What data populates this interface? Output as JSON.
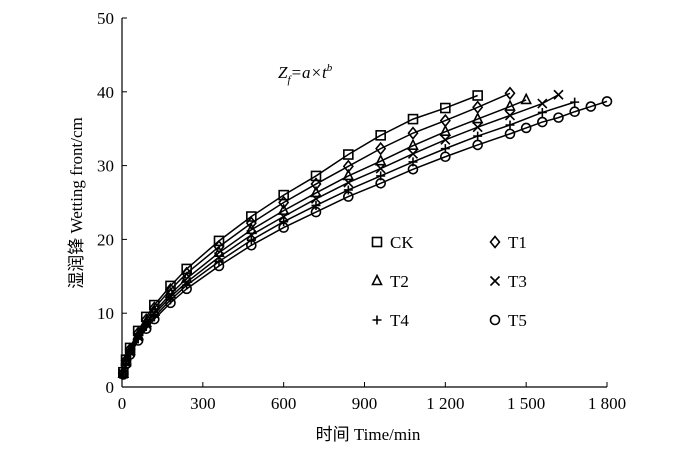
{
  "chart_data": {
    "type": "scatter",
    "annotation": {
      "base": "Z",
      "sub": "f",
      "mid": "=a×t",
      "sup": "b"
    },
    "xlabel": "时间 Time/min",
    "ylabel": "湿润锋 Wetting front/cm",
    "xlim": [
      0,
      1800
    ],
    "ylim": [
      0,
      50
    ],
    "xticks": [
      0,
      300,
      600,
      900,
      {
        "value": 1200,
        "label": "1 200"
      },
      {
        "value": 1500,
        "label": "1 500"
      },
      {
        "value": 1800,
        "label": "1 800"
      }
    ],
    "yticks": [
      0,
      10,
      20,
      30,
      40,
      50
    ],
    "grid": false,
    "series": [
      {
        "name": "CK",
        "color": "#000000",
        "marker": "square",
        "x": [
          5,
          15,
          30,
          60,
          90,
          120,
          180,
          240,
          360,
          480,
          600,
          720,
          840,
          960,
          1080,
          1200,
          1320
        ],
        "values": [
          2.0,
          3.7,
          5.3,
          7.6,
          9.5,
          11.1,
          13.7,
          16.0,
          19.8,
          23.1,
          26.0,
          28.6,
          31.5,
          34.1,
          36.3,
          37.8,
          39.5
        ]
      },
      {
        "name": "T1",
        "color": "#000000",
        "marker": "diamond",
        "x": [
          5,
          15,
          30,
          60,
          90,
          120,
          180,
          240,
          360,
          480,
          600,
          720,
          840,
          960,
          1080,
          1200,
          1320,
          1440
        ],
        "values": [
          1.9,
          3.6,
          5.1,
          7.3,
          9.1,
          10.7,
          13.2,
          15.4,
          19.0,
          22.2,
          25.0,
          27.5,
          29.9,
          32.3,
          34.4,
          36.1,
          37.9,
          39.8
        ]
      },
      {
        "name": "T2",
        "color": "#000000",
        "marker": "triangle",
        "x": [
          5,
          15,
          30,
          60,
          90,
          120,
          180,
          240,
          360,
          480,
          600,
          720,
          840,
          960,
          1080,
          1200,
          1320,
          1440,
          1500
        ],
        "values": [
          1.8,
          3.4,
          4.9,
          7.0,
          8.7,
          10.2,
          12.6,
          14.7,
          18.2,
          21.3,
          23.9,
          26.3,
          28.6,
          30.6,
          32.7,
          34.6,
          36.3,
          38.0,
          38.9
        ]
      },
      {
        "name": "T3",
        "color": "#000000",
        "marker": "x",
        "x": [
          5,
          15,
          30,
          60,
          90,
          120,
          180,
          240,
          360,
          480,
          600,
          720,
          840,
          960,
          1080,
          1200,
          1320,
          1440,
          1560,
          1620
        ],
        "values": [
          1.8,
          3.3,
          4.7,
          6.8,
          8.5,
          9.9,
          12.2,
          14.2,
          17.6,
          20.6,
          23.1,
          25.5,
          27.7,
          29.6,
          31.6,
          33.5,
          35.2,
          36.8,
          38.4,
          39.6
        ]
      },
      {
        "name": "T4",
        "color": "#000000",
        "marker": "plus",
        "x": [
          5,
          15,
          30,
          60,
          90,
          120,
          180,
          240,
          360,
          480,
          600,
          720,
          840,
          960,
          1080,
          1200,
          1320,
          1440,
          1560,
          1680
        ],
        "values": [
          1.7,
          3.2,
          4.6,
          6.5,
          8.2,
          9.5,
          11.8,
          13.8,
          17.0,
          19.9,
          22.4,
          24.6,
          26.7,
          28.6,
          30.5,
          32.3,
          34.0,
          35.5,
          37.2,
          38.6
        ]
      },
      {
        "name": "T5",
        "color": "#000000",
        "marker": "circle",
        "x": [
          5,
          15,
          30,
          60,
          90,
          120,
          180,
          240,
          360,
          480,
          600,
          720,
          840,
          960,
          1080,
          1200,
          1320,
          1440,
          1500,
          1560,
          1620,
          1680,
          1740,
          1800
        ],
        "values": [
          1.7,
          3.1,
          4.4,
          6.3,
          7.9,
          9.2,
          11.4,
          13.3,
          16.4,
          19.2,
          21.6,
          23.7,
          25.8,
          27.6,
          29.5,
          31.2,
          32.8,
          34.3,
          35.1,
          35.9,
          36.5,
          37.3,
          38.0,
          38.7
        ]
      }
    ]
  }
}
